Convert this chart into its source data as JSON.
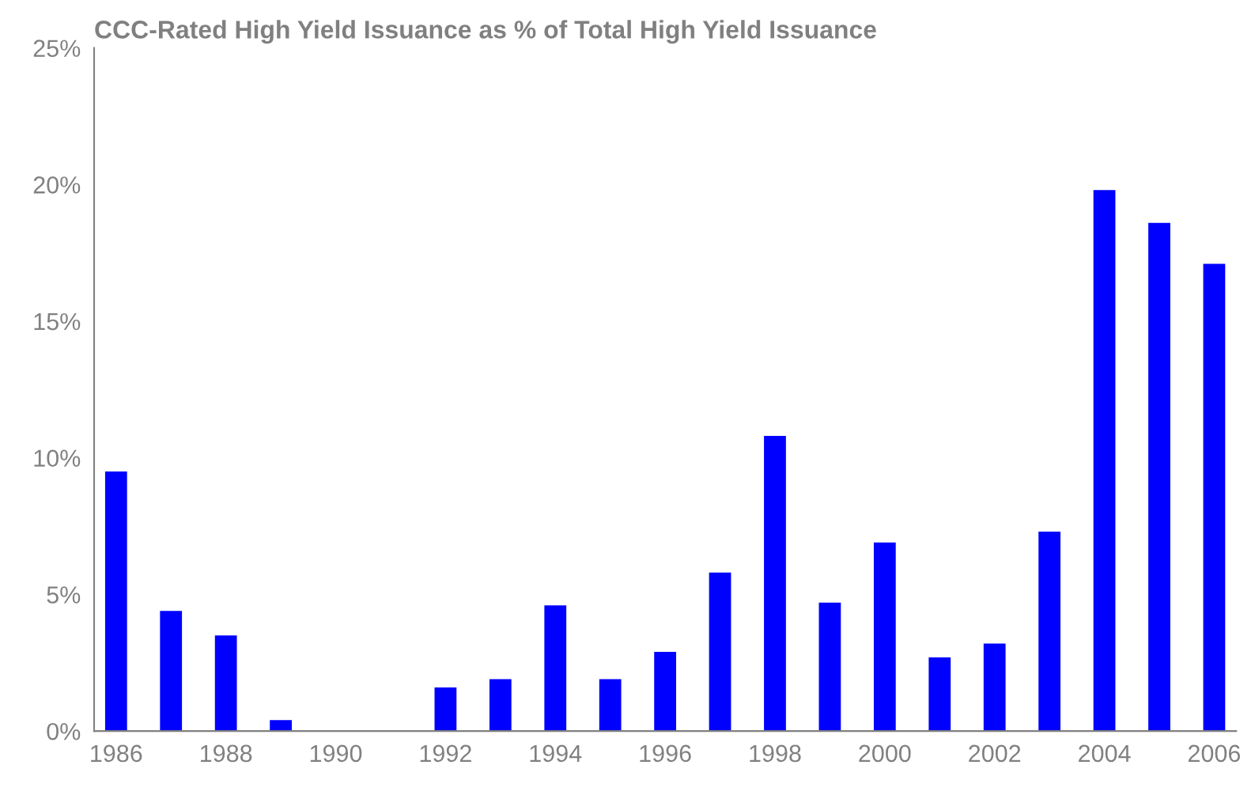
{
  "chart_data": {
    "type": "bar",
    "title": "CCC-Rated High Yield Issuance as % of Total High Yield Issuance",
    "categories": [
      "1986",
      null,
      "1988",
      null,
      "1990",
      null,
      "1992",
      null,
      "1994",
      null,
      "1996",
      null,
      "1998",
      null,
      "2000",
      null,
      "2002",
      null,
      "2004",
      null,
      "2006"
    ],
    "values": [
      9.5,
      4.4,
      3.5,
      0.4,
      0,
      0,
      1.6,
      1.9,
      4.6,
      1.9,
      2.9,
      5.8,
      10.8,
      4.7,
      6.9,
      2.7,
      3.2,
      7.3,
      19.8,
      18.6,
      17.1
    ],
    "color": "#0000ff",
    "ylim": [
      0,
      25
    ],
    "yticks": [
      {
        "value": 0,
        "label": "0%"
      },
      {
        "value": 5,
        "label": "5%"
      },
      {
        "value": 10,
        "label": "10%"
      },
      {
        "value": 15,
        "label": "15%"
      },
      {
        "value": 20,
        "label": "20%"
      },
      {
        "value": 25,
        "label": "25%"
      }
    ],
    "grid": false
  }
}
